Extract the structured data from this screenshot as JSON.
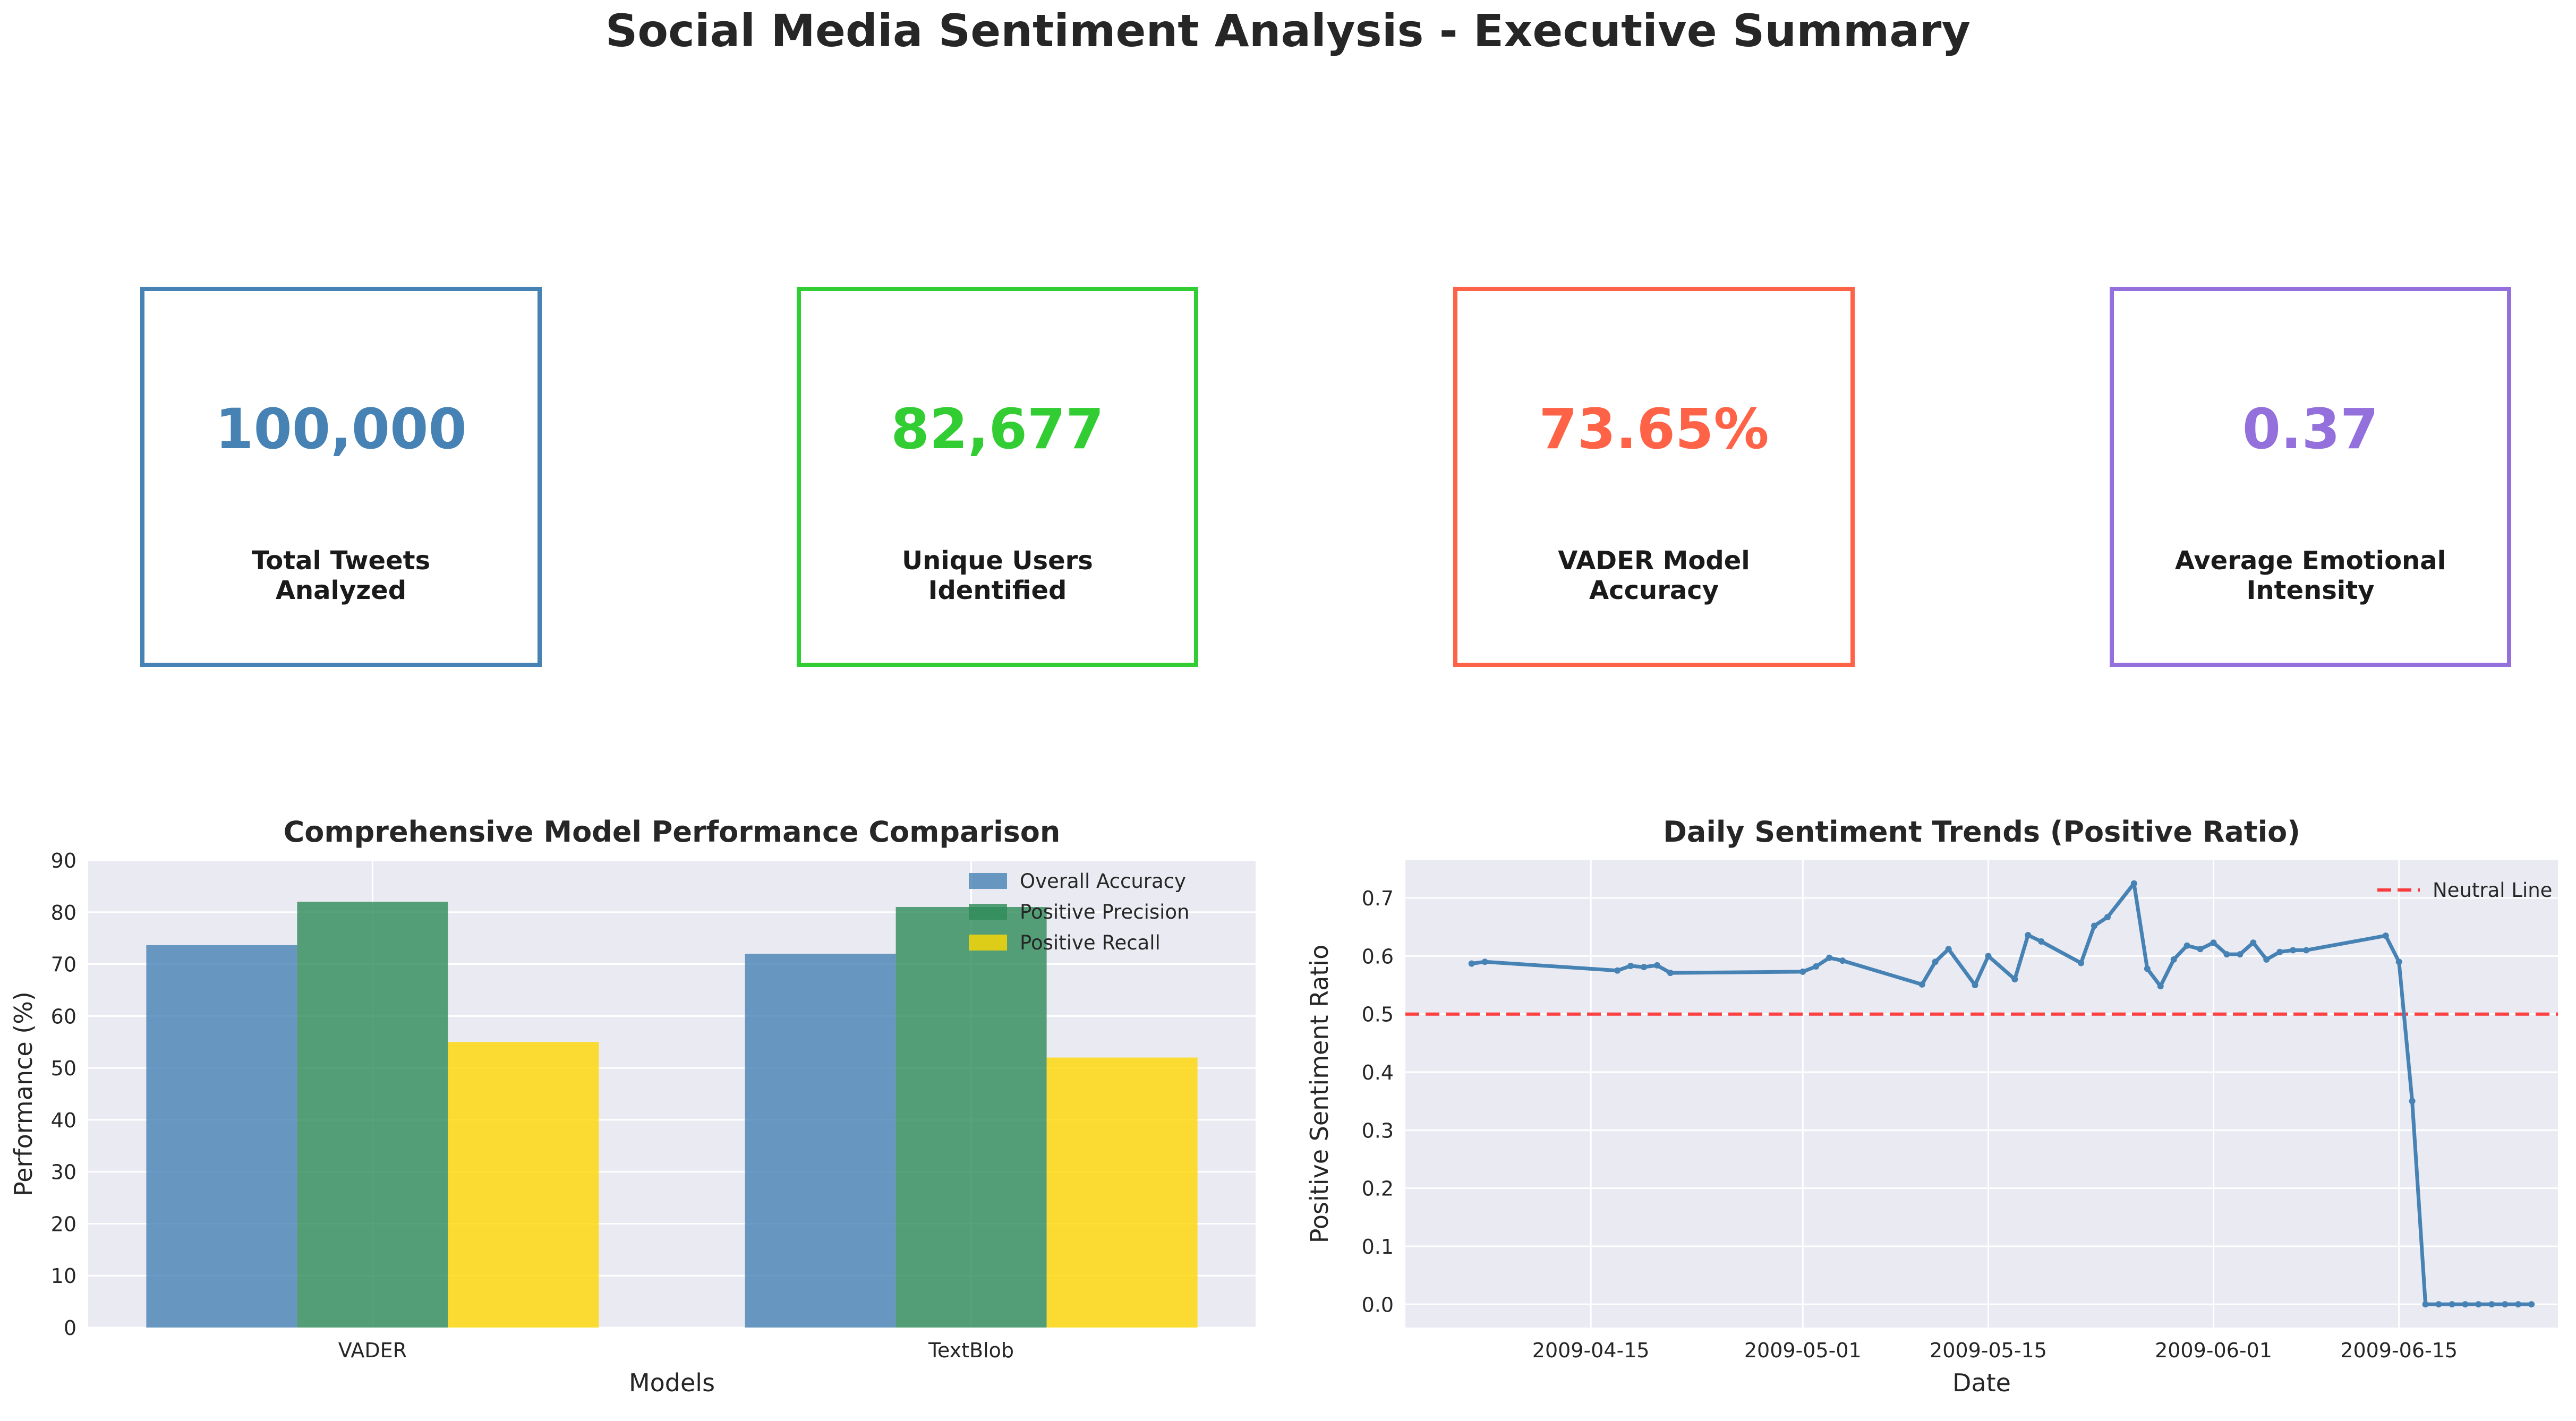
{
  "page": {
    "title": "Social Media Sentiment Analysis - Executive Summary"
  },
  "kpis": [
    {
      "value": "100,000",
      "label": "Total Tweets\nAnalyzed",
      "color": "#4682b4"
    },
    {
      "value": "82,677",
      "label": "Unique Users\nIdentified",
      "color": "#32cd32"
    },
    {
      "value": "73.65%",
      "label": "VADER Model\nAccuracy",
      "color": "#ff6347"
    },
    {
      "value": "0.37",
      "label": "Average Emotional\nIntensity",
      "color": "#9370db"
    }
  ],
  "chart_data": [
    {
      "type": "bar",
      "title": "Comprehensive Model Performance Comparison",
      "xlabel": "Models",
      "ylabel": "Performance (%)",
      "categories": [
        "VADER",
        "TextBlob"
      ],
      "series": [
        {
          "name": "Overall Accuracy",
          "values": [
            73.65,
            72.0
          ],
          "color": "#4682b4"
        },
        {
          "name": "Positive Precision",
          "values": [
            82.0,
            81.0
          ],
          "color": "#2e8b57"
        },
        {
          "name": "Positive Recall",
          "values": [
            55.0,
            52.0
          ],
          "color": "#ffd700"
        }
      ],
      "ylim": [
        0,
        90
      ],
      "yticks": [
        0,
        10,
        20,
        30,
        40,
        50,
        60,
        70,
        80,
        90
      ],
      "grid": true,
      "legend": "top-right"
    },
    {
      "type": "line",
      "title": "Daily Sentiment Trends (Positive Ratio)",
      "xlabel": "Date",
      "ylabel": "Positive Sentiment Ratio",
      "xlim": [
        "2009-04-01",
        "2009-06-27"
      ],
      "ylim": [
        -0.04,
        0.765
      ],
      "xticks": [
        "2009-04-15",
        "2009-05-01",
        "2009-05-15",
        "2009-06-01",
        "2009-06-15"
      ],
      "yticks": [
        "0.0",
        "0.1",
        "0.2",
        "0.3",
        "0.4",
        "0.5",
        "0.6",
        "0.7"
      ],
      "grid": true,
      "legend": "top-right",
      "series": [
        {
          "name": "",
          "color": "#4682b4",
          "points": [
            [
              "2009-04-06",
              0.587
            ],
            [
              "2009-04-07",
              0.59
            ],
            [
              "2009-04-17",
              0.575
            ],
            [
              "2009-04-18",
              0.583
            ],
            [
              "2009-04-19",
              0.581
            ],
            [
              "2009-04-20",
              0.584
            ],
            [
              "2009-04-21",
              0.571
            ],
            [
              "2009-05-01",
              0.573
            ],
            [
              "2009-05-02",
              0.582
            ],
            [
              "2009-05-03",
              0.597
            ],
            [
              "2009-05-04",
              0.592
            ],
            [
              "2009-05-10",
              0.551
            ],
            [
              "2009-05-11",
              0.59
            ],
            [
              "2009-05-12",
              0.612
            ],
            [
              "2009-05-14",
              0.55
            ],
            [
              "2009-05-15",
              0.6
            ],
            [
              "2009-05-17",
              0.56
            ],
            [
              "2009-05-18",
              0.636
            ],
            [
              "2009-05-19",
              0.625
            ],
            [
              "2009-05-22",
              0.588
            ],
            [
              "2009-05-23",
              0.652
            ],
            [
              "2009-05-24",
              0.667
            ],
            [
              "2009-05-26",
              0.725
            ],
            [
              "2009-05-27",
              0.578
            ],
            [
              "2009-05-28",
              0.548
            ],
            [
              "2009-05-29",
              0.594
            ],
            [
              "2009-05-30",
              0.618
            ],
            [
              "2009-05-31",
              0.612
            ],
            [
              "2009-06-01",
              0.623
            ],
            [
              "2009-06-02",
              0.603
            ],
            [
              "2009-06-03",
              0.603
            ],
            [
              "2009-06-04",
              0.623
            ],
            [
              "2009-06-05",
              0.594
            ],
            [
              "2009-06-06",
              0.607
            ],
            [
              "2009-06-07",
              0.61
            ],
            [
              "2009-06-08",
              0.61
            ],
            [
              "2009-06-14",
              0.635
            ],
            [
              "2009-06-15",
              0.59
            ],
            [
              "2009-06-16",
              0.35
            ],
            [
              "2009-06-17",
              0.0
            ],
            [
              "2009-06-18",
              0.0
            ],
            [
              "2009-06-19",
              0.0
            ],
            [
              "2009-06-20",
              0.0
            ],
            [
              "2009-06-21",
              0.0
            ],
            [
              "2009-06-22",
              0.0
            ],
            [
              "2009-06-23",
              0.0
            ],
            [
              "2009-06-24",
              0.0
            ],
            [
              "2009-06-25",
              0.0
            ]
          ]
        }
      ],
      "reference_lines": [
        {
          "name": "Neutral Line",
          "y": 0.5,
          "color": "#ff0000",
          "style": "dashed"
        }
      ]
    }
  ]
}
